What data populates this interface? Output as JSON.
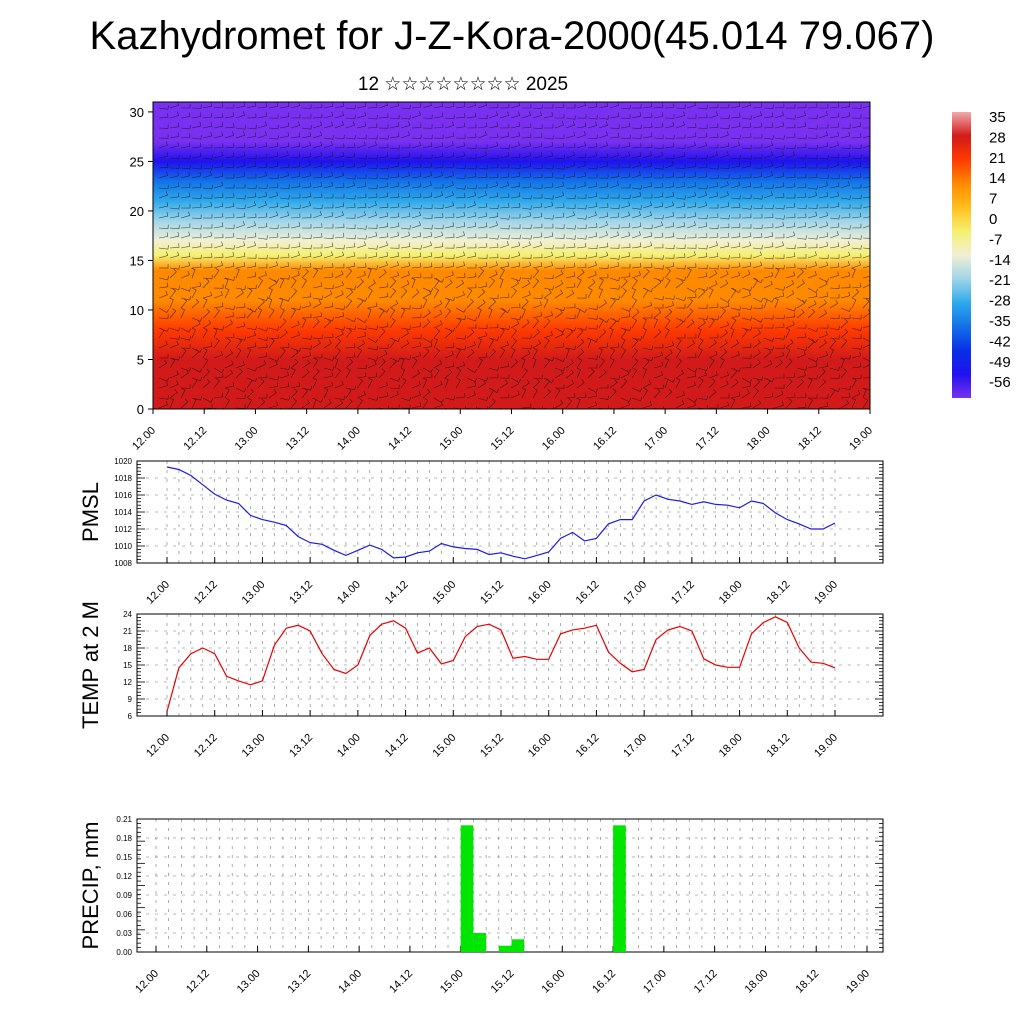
{
  "title": "Kazhydromet for J-Z-Kora-2000(45.014 79.067)",
  "subtitle": "12 ☆☆☆☆☆☆☆☆ 2025",
  "time_ticks": [
    "12.00",
    "12.12",
    "13.00",
    "13.12",
    "14.00",
    "14.12",
    "15.00",
    "15.12",
    "16.00",
    "16.12",
    "17.00",
    "17.12",
    "18.00",
    "18.12",
    "19.00"
  ],
  "chart_data": [
    {
      "type": "heatmap",
      "title": "",
      "ylim": [
        0,
        31
      ],
      "y_ticks": [
        "0",
        "5",
        "10",
        "15",
        "20",
        "25",
        "30"
      ],
      "colorbar": {
        "labels": [
          "35",
          "28",
          "21",
          "14",
          "7",
          "0",
          "-7",
          "-14",
          "-21",
          "-28",
          "-35",
          "-42",
          "-49",
          "-56"
        ],
        "stops": [
          {
            "v": 35,
            "c": "#f2aaaa"
          },
          {
            "v": 28,
            "c": "#d21a1a"
          },
          {
            "v": 14,
            "c": "#ff3a00"
          },
          {
            "v": 7,
            "c": "#ff8a00"
          },
          {
            "v": 0,
            "c": "#ffbf1e"
          },
          {
            "v": -7,
            "c": "#f5f070"
          },
          {
            "v": -14,
            "c": "#f2efd5"
          },
          {
            "v": -21,
            "c": "#9fd5ea"
          },
          {
            "v": -28,
            "c": "#2fa9ea"
          },
          {
            "v": -35,
            "c": "#1272e8"
          },
          {
            "v": -42,
            "c": "#0830e6"
          },
          {
            "v": -49,
            "c": "#1f12ee"
          },
          {
            "v": -56,
            "c": "#7a30f0"
          }
        ]
      },
      "temperature_profile": [
        {
          "h": 0,
          "t": 26
        },
        {
          "h": 2,
          "t": 22
        },
        {
          "h": 5,
          "t": 14
        },
        {
          "h": 8,
          "t": 9
        },
        {
          "h": 11,
          "t": 5
        },
        {
          "h": 14,
          "t": 1
        },
        {
          "h": 15.5,
          "t": -8
        },
        {
          "h": 17,
          "t": -17
        },
        {
          "h": 19,
          "t": -25
        },
        {
          "h": 21,
          "t": -33
        },
        {
          "h": 23,
          "t": -42
        },
        {
          "h": 25,
          "t": -50
        },
        {
          "h": 27,
          "t": -56
        },
        {
          "h": 29,
          "t": -60
        },
        {
          "h": 31,
          "t": -62
        }
      ]
    },
    {
      "type": "line",
      "ylabel": "PMSL",
      "ylim": [
        1008,
        1020
      ],
      "y_ticks": [
        "1008",
        "1010",
        "1012",
        "1014",
        "1016",
        "1018",
        "1020"
      ],
      "color": "#1a1ae6",
      "series": [
        {
          "values": [
            1019.3,
            1019.0,
            1018.3,
            1017.2,
            1016.1,
            1015.4,
            1015.0,
            1013.6,
            1013.1,
            1012.8,
            1012.4,
            1011.1,
            1010.4,
            1010.2,
            1009.5,
            1008.9,
            1009.5,
            1010.1,
            1009.6,
            1008.6,
            1008.7,
            1009.2,
            1009.4,
            1010.3,
            1009.9,
            1009.7,
            1009.6,
            1009.0,
            1009.2,
            1008.8,
            1008.5,
            1008.9,
            1009.3,
            1010.9,
            1011.6,
            1010.6,
            1010.9,
            1012.6,
            1013.1,
            1013.1,
            1015.3,
            1016.0,
            1015.5,
            1015.3,
            1014.9,
            1015.2,
            1014.9,
            1014.8,
            1014.5,
            1015.3,
            1015.0,
            1013.9,
            1013.1,
            1012.6,
            1012.0,
            1012.0,
            1012.7
          ]
        }
      ]
    },
    {
      "type": "line",
      "ylabel": "TEMP at 2 M",
      "ylim": [
        6,
        24
      ],
      "y_ticks": [
        "6",
        "9",
        "12",
        "15",
        "18",
        "21",
        "24"
      ],
      "color": "#e60000",
      "series": [
        {
          "values": [
            6.8,
            14.5,
            17.0,
            18.0,
            17.0,
            13.0,
            12.2,
            11.5,
            12.2,
            18.5,
            21.5,
            22.0,
            21.0,
            17.0,
            14.2,
            13.5,
            15.0,
            20.2,
            22.2,
            22.8,
            21.5,
            17.1,
            18.0,
            15.2,
            15.8,
            20.0,
            21.8,
            22.2,
            21.2,
            16.2,
            16.5,
            16.0,
            16.0,
            20.5,
            21.2,
            21.5,
            22.0,
            17.3,
            15.3,
            13.8,
            14.2,
            19.5,
            21.2,
            21.8,
            21.0,
            16.1,
            15.0,
            14.6,
            14.6,
            20.5,
            22.5,
            23.5,
            22.5,
            18.0,
            15.5,
            15.3,
            14.5
          ]
        }
      ]
    },
    {
      "type": "bar",
      "ylabel": "PRECIP, mm",
      "ylim": [
        0,
        0.21
      ],
      "y_ticks": [
        "0.00",
        "0.03",
        "0.06",
        "0.09",
        "0.12",
        "0.15",
        "0.18",
        "0.21"
      ],
      "color": "#00e600",
      "series": [
        {
          "values": [
            0,
            0,
            0,
            0,
            0,
            0,
            0,
            0,
            0,
            0,
            0,
            0,
            0,
            0,
            0,
            0,
            0,
            0,
            0,
            0,
            0,
            0,
            0,
            0,
            0.2,
            0.03,
            0,
            0.01,
            0.02,
            0,
            0,
            0,
            0,
            0,
            0,
            0,
            0.2,
            0,
            0,
            0,
            0,
            0,
            0,
            0,
            0,
            0,
            0,
            0,
            0,
            0,
            0,
            0,
            0,
            0,
            0,
            0,
            0
          ]
        }
      ]
    }
  ]
}
